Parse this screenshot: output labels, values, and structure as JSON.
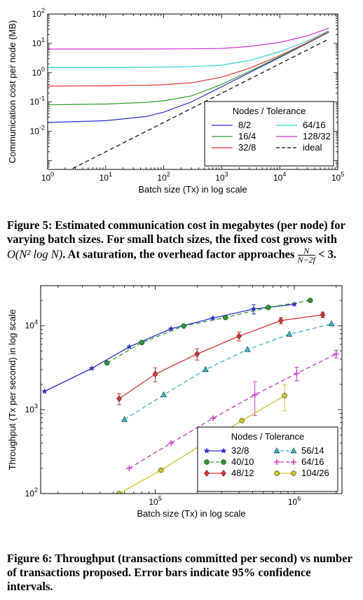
{
  "chart_data": [
    {
      "type": "line",
      "xlabel": "Batch size (Tx) in log scale",
      "ylabel": "Communication cost per node (MB)",
      "xscale": "log",
      "yscale": "log",
      "xlim": [
        1,
        100000
      ],
      "ylim": [
        0.0005,
        100
      ],
      "x_ticks": [
        {
          "value": 1,
          "base": "10",
          "exp": "0"
        },
        {
          "value": 10,
          "base": "10",
          "exp": "1"
        },
        {
          "value": 100,
          "base": "10",
          "exp": "2"
        },
        {
          "value": 1000,
          "base": "10",
          "exp": "3"
        },
        {
          "value": 10000,
          "base": "10",
          "exp": "4"
        },
        {
          "value": 100000,
          "base": "10",
          "exp": "5"
        }
      ],
      "y_ticks": [
        {
          "value": 0.01,
          "base": "10",
          "exp": "-2"
        },
        {
          "value": 0.1,
          "base": "10",
          "exp": "-1"
        },
        {
          "value": 1,
          "base": "10",
          "exp": "0"
        },
        {
          "value": 10,
          "base": "10",
          "exp": "1"
        },
        {
          "value": 100,
          "base": "10",
          "exp": "2"
        }
      ],
      "legend": {
        "title": "Nodes / Tolerance",
        "position": "lower-right",
        "columns": 2
      },
      "series": [
        {
          "name": "8/2",
          "color": "#2b2bd6",
          "dash": "solid",
          "x": [
            1,
            10,
            50,
            100,
            300,
            1000,
            3000,
            10000,
            30000,
            70000
          ],
          "y": [
            0.02,
            0.023,
            0.032,
            0.045,
            0.1,
            0.33,
            1.0,
            3.3,
            10,
            24
          ]
        },
        {
          "name": "16/4",
          "color": "#2a9a2a",
          "dash": "solid",
          "x": [
            1,
            10,
            50,
            100,
            300,
            1000,
            3000,
            10000,
            30000,
            70000
          ],
          "y": [
            0.08,
            0.085,
            0.097,
            0.11,
            0.16,
            0.4,
            1.1,
            3.5,
            10.3,
            24.5
          ]
        },
        {
          "name": "32/8",
          "color": "#e03030",
          "dash": "solid",
          "x": [
            1,
            10,
            50,
            100,
            300,
            1000,
            3000,
            10000,
            30000,
            70000
          ],
          "y": [
            0.35,
            0.355,
            0.37,
            0.39,
            0.45,
            0.7,
            1.4,
            3.8,
            10.6,
            25
          ]
        },
        {
          "name": "64/16",
          "color": "#30d0d0",
          "dash": "solid",
          "x": [
            1,
            10,
            50,
            100,
            300,
            1000,
            3000,
            10000,
            30000,
            70000
          ],
          "y": [
            1.5,
            1.5,
            1.52,
            1.55,
            1.6,
            1.8,
            2.6,
            5.2,
            12,
            27
          ]
        },
        {
          "name": "128/32",
          "color": "#d030d0",
          "dash": "solid",
          "x": [
            1,
            10,
            50,
            100,
            300,
            1000,
            3000,
            10000,
            30000,
            70000
          ],
          "y": [
            6.4,
            6.4,
            6.4,
            6.45,
            6.5,
            6.7,
            7.8,
            10.8,
            18,
            33
          ]
        },
        {
          "name": "ideal",
          "color": "#000000",
          "dash": "dashed",
          "x": [
            1,
            70000
          ],
          "y": [
            0.0002,
            14
          ]
        }
      ]
    },
    {
      "type": "line",
      "xlabel": "Batch size (Tx) in log scale",
      "ylabel": "Throughput (Tx per second) in log scale",
      "xscale": "log",
      "yscale": "log",
      "xlim": [
        15000,
        2200000
      ],
      "ylim": [
        100,
        30000
      ],
      "x_ticks": [
        {
          "value": 100000,
          "base": "10",
          "exp": "5"
        },
        {
          "value": 1000000,
          "base": "10",
          "exp": "6"
        }
      ],
      "y_ticks": [
        {
          "value": 100,
          "base": "10",
          "exp": "2"
        },
        {
          "value": 1000,
          "base": "10",
          "exp": "3"
        },
        {
          "value": 10000,
          "base": "10",
          "exp": "4"
        }
      ],
      "legend": {
        "title": "Nodes / Tolerance",
        "position": "lower-right",
        "columns": 2
      },
      "series": [
        {
          "name": "32/8",
          "color": "#2b2bd6",
          "dash": "solid",
          "marker": "star",
          "x": [
            16000,
            35000,
            65000,
            130000,
            260000,
            510000,
            1000000
          ],
          "y": [
            1650,
            3100,
            5600,
            9200,
            12300,
            15800,
            18000
          ],
          "err": [
            0,
            0,
            0,
            0,
            0,
            2000,
            0
          ]
        },
        {
          "name": "40/10",
          "color": "#2a9a2a",
          "dash": "dashed",
          "marker": "circle",
          "x": [
            45000,
            80000,
            160000,
            320000,
            650000,
            1300000
          ],
          "y": [
            3600,
            6300,
            9900,
            12500,
            16500,
            20000
          ],
          "err": [
            0,
            0,
            0,
            0,
            0,
            0
          ]
        },
        {
          "name": "48/12",
          "color": "#e03030",
          "dash": "solid",
          "marker": "diamond",
          "x": [
            55000,
            100000,
            200000,
            400000,
            800000,
            1600000
          ],
          "y": [
            1350,
            2650,
            4600,
            7500,
            11500,
            13500
          ],
          "err": [
            200,
            500,
            700,
            900,
            1000,
            1000
          ]
        },
        {
          "name": "56/14",
          "color": "#30b8c8",
          "dash": "dashed",
          "marker": "triangle",
          "x": [
            60000,
            115000,
            230000,
            460000,
            920000,
            1850000
          ],
          "y": [
            760,
            1500,
            3000,
            5200,
            7900,
            10500
          ],
          "err": [
            0,
            0,
            0,
            0,
            0,
            0
          ]
        },
        {
          "name": "64/16",
          "color": "#d030d0",
          "dash": "dashed",
          "marker": "plus",
          "x": [
            65000,
            130000,
            260000,
            520000,
            1040000,
            2000000
          ],
          "y": [
            200,
            400,
            790,
            1500,
            2700,
            4600
          ],
          "err": [
            0,
            0,
            0,
            650,
            500,
            500
          ]
        },
        {
          "name": "104/26",
          "color": "#c8c820",
          "dash": "solid",
          "marker": "circle",
          "x": [
            55000,
            110000,
            210000,
            420000,
            850000
          ],
          "y": [
            100,
            190,
            370,
            740,
            1470
          ],
          "err": [
            0,
            0,
            0,
            0,
            500
          ]
        }
      ]
    }
  ],
  "captions": {
    "fig5": {
      "lead": "Figure 5:  Estimated communication cost in megabytes (per node) for varying batch sizes.  For small batch sizes, the fixed cost grows with ",
      "math": "O(N² log N)",
      "mid": ".  At saturation, the overhead factor approaches ",
      "frac_num": "N",
      "frac_den": "N−2f",
      "tail": " < 3."
    },
    "fig6": {
      "text": "Figure 6: Throughput (transactions committed per second) vs number of transactions proposed.  Error bars indicate 95% confidence intervals."
    }
  }
}
